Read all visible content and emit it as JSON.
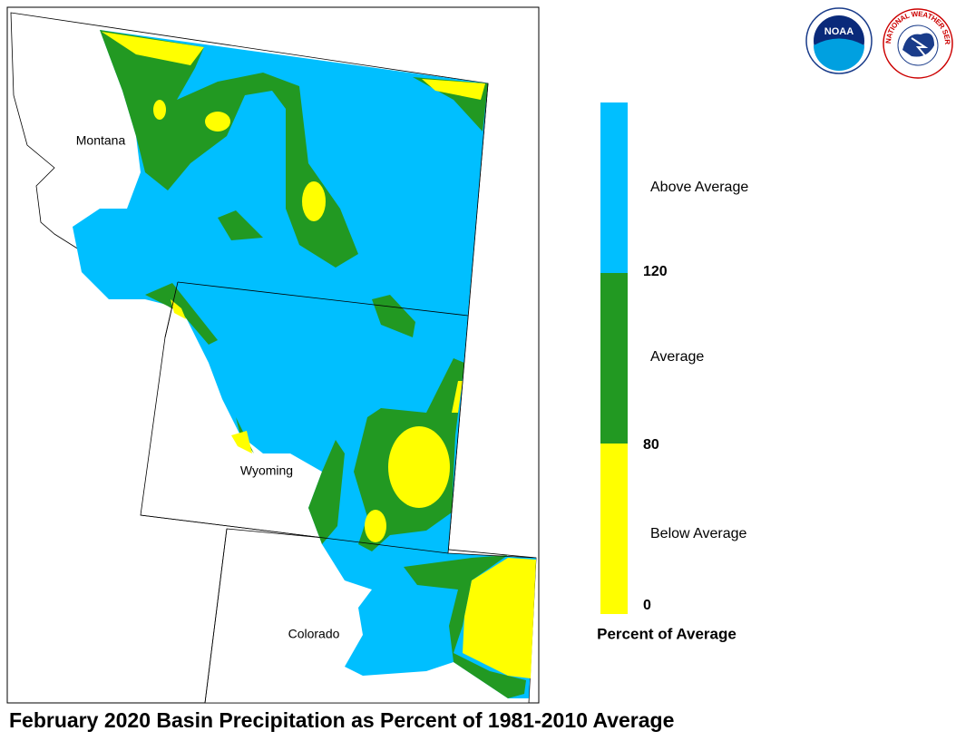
{
  "map": {
    "title": "February 2020 Basin Precipitation as Percent of 1981-2010 Average",
    "states": [
      "Montana",
      "Wyoming",
      "Colorado"
    ],
    "legend": {
      "title": "Percent of Average",
      "classes": [
        {
          "label": "Above Average",
          "color": "#00bfff"
        },
        {
          "label": "Average",
          "color": "#229922"
        },
        {
          "label": "Below Average",
          "color": "#ffff00"
        }
      ],
      "breaks": [
        120,
        80,
        0
      ]
    },
    "logos": [
      "NOAA",
      "NATIONAL WEATHER SERVICE"
    ]
  }
}
